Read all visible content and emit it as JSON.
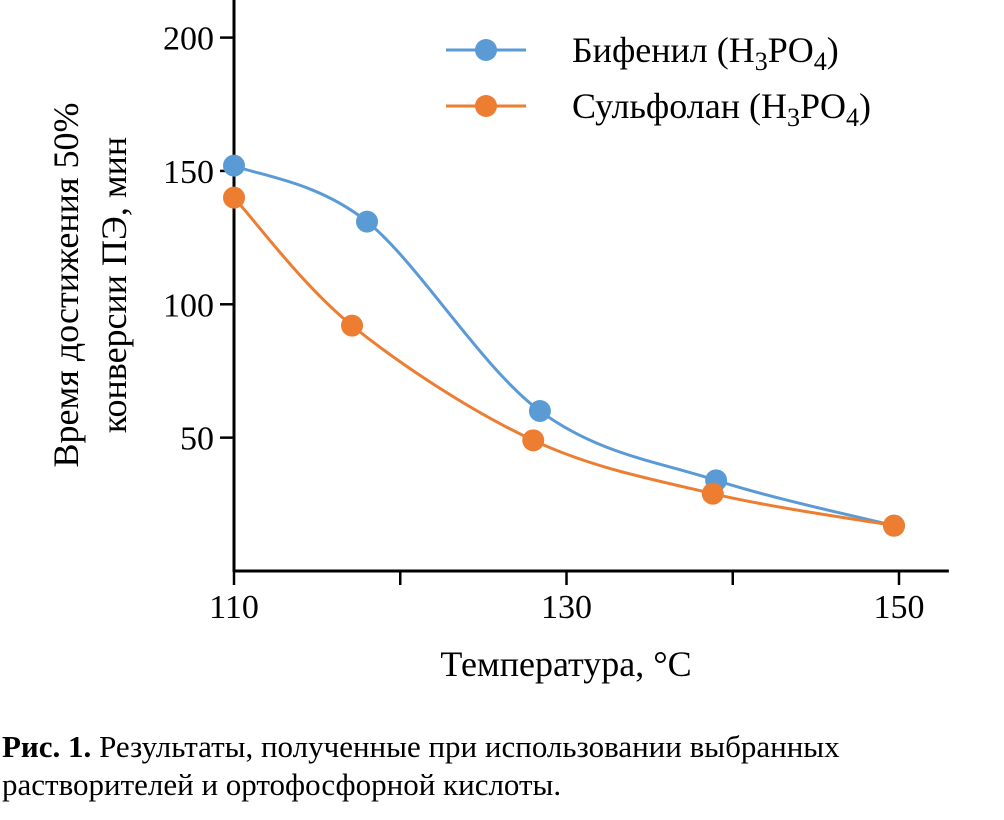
{
  "chart_data": {
    "type": "line",
    "xlabel": "Температура, °C",
    "ylabel_lines": [
      "Время достижения 50%",
      "конверсии ПЭ, мин"
    ],
    "xlim": [
      110,
      153
    ],
    "ylim": [
      0,
      214
    ],
    "xticks": [
      110,
      120,
      130,
      140,
      150
    ],
    "xtick_labels": [
      "110",
      "",
      "130",
      "",
      "150"
    ],
    "yticks": [
      50,
      100,
      150,
      200
    ],
    "ytick_labels": [
      "50",
      "100",
      "150",
      "200"
    ],
    "grid": false,
    "legend_position": "top-right",
    "series": [
      {
        "name": "Бифенил (H3PO4)",
        "name_parts": [
          "Бифенил (H",
          "3",
          "PO",
          "4",
          ")"
        ],
        "color": "#5b9bd5",
        "x": [
          110,
          118,
          128.4,
          139,
          149.7
        ],
        "y": [
          152,
          131,
          60,
          34,
          17
        ]
      },
      {
        "name": "Сульфолан (H3PO4)",
        "name_parts": [
          "Сульфолан (H",
          "3",
          "PO",
          "4",
          ")"
        ],
        "color": "#ed7d31",
        "x": [
          110,
          117.1,
          128,
          138.8,
          149.7
        ],
        "y": [
          140,
          92,
          49,
          29,
          17
        ]
      }
    ]
  },
  "caption": {
    "label": "Рис. 1.",
    "text": " Результаты, полученные при использовании выбранных растворителей и ортофосфорной кислоты."
  }
}
